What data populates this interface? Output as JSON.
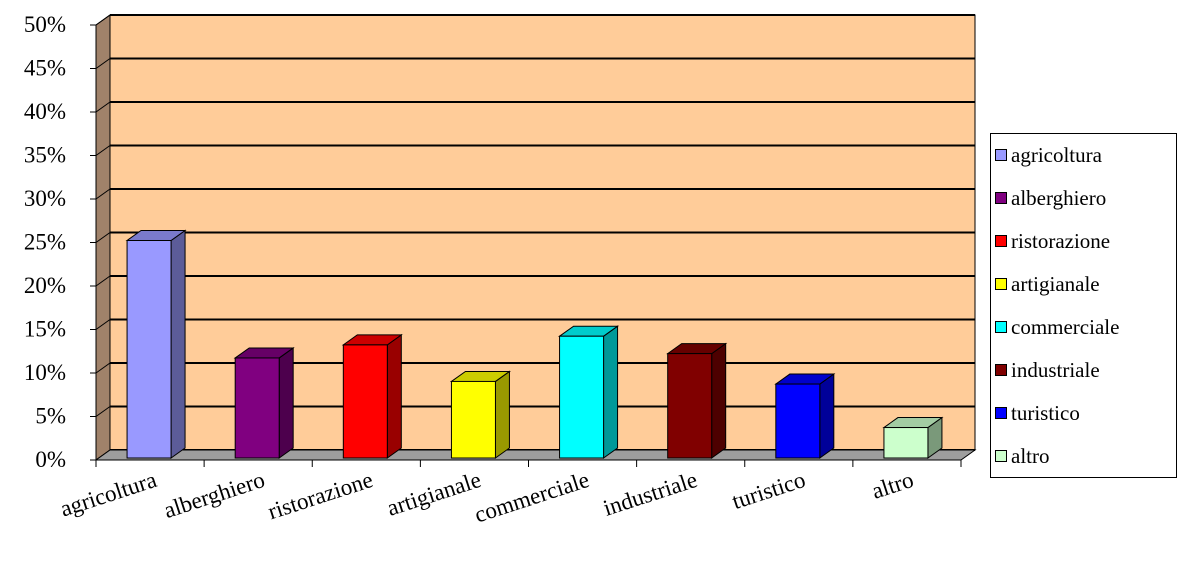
{
  "chart_data": {
    "type": "bar",
    "categories": [
      "agricoltura",
      "alberghiero",
      "ristorazione",
      "artigianale",
      "commerciale",
      "industriale",
      "turistico",
      "altro"
    ],
    "series": [
      {
        "values": [
          25,
          11.5,
          13,
          8.8,
          14,
          12,
          8.5,
          3.5
        ]
      }
    ],
    "colors": [
      "#9999FF",
      "#800080",
      "#FF0000",
      "#FFFF00",
      "#00FFFF",
      "#800000",
      "#0000FF",
      "#CCFFCC"
    ],
    "ylim": [
      0,
      50
    ],
    "yticks": [
      "0%",
      "5%",
      "10%",
      "15%",
      "20%",
      "25%",
      "30%",
      "35%",
      "40%",
      "45%",
      "50%"
    ],
    "title": "",
    "xlabel": "",
    "ylabel": "",
    "grid": true,
    "legend_position": "right",
    "plot_background": "#FFCC99",
    "style": "3d-column"
  },
  "legend": {
    "items": [
      "agricoltura",
      "alberghiero",
      "ristorazione",
      "artigianale",
      "commerciale",
      "industriale",
      "turistico",
      "altro"
    ]
  }
}
